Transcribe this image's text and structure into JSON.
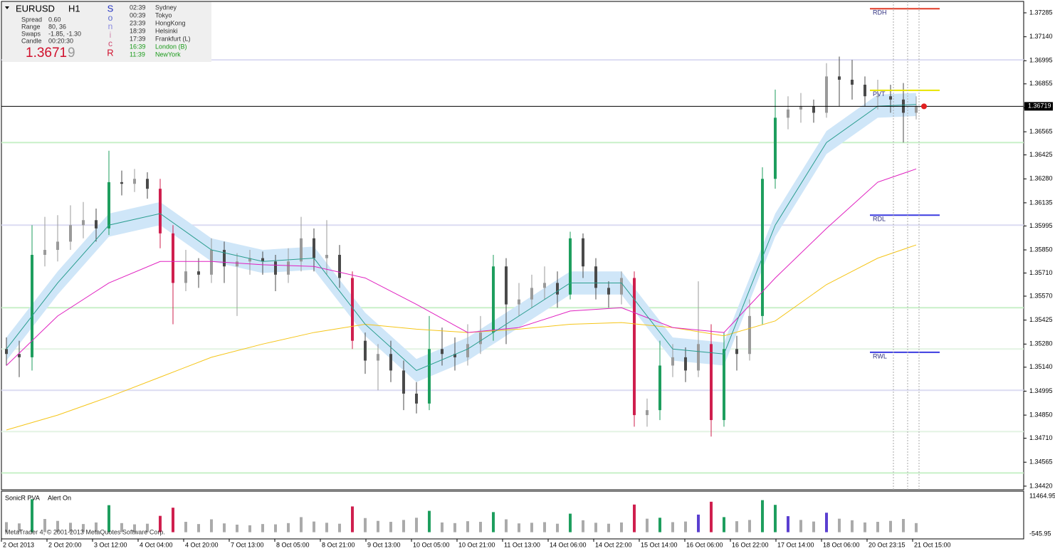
{
  "header": {
    "symbol": "EURUSD",
    "timeframe": "H1",
    "rows": [
      [
        "Spread",
        "0.60"
      ],
      [
        "Range",
        "80, 36"
      ],
      [
        "Swaps",
        "-1.85, -1.30"
      ],
      [
        "Candle",
        "00:20:30"
      ]
    ],
    "price_main": "1.3671",
    "price_last": "9",
    "brand": [
      "S",
      "o",
      "n",
      "i",
      "c",
      "R"
    ],
    "sessions": [
      [
        "02:39",
        "Sydney"
      ],
      [
        "00:39",
        "Tokyo"
      ],
      [
        "23:39",
        "HongKong"
      ],
      [
        "18:39",
        "Helsinki"
      ],
      [
        "17:39",
        "Frankfurt  (L)"
      ],
      [
        "16:39",
        "London  (B)"
      ],
      [
        "11:39",
        "NewYork"
      ]
    ]
  },
  "indicator": {
    "name": "SonicR PVA",
    "alert": "Alert On"
  },
  "footer": "MetaTrader 4, © 2001-2013 MetaQuotes Software Corp.",
  "chart_data": {
    "type": "candlestick",
    "ylim": [
      1.34398,
      1.37354
    ],
    "yticks": [
      1.37285,
      {
        "value": 1.3714,
        "label": "1.37140"
      },
      1.36995,
      1.36855,
      {
        "value": 1.3671,
        "label": "1.36710"
      },
      1.36565,
      1.36425,
      {
        "value": 1.3628,
        "label": "1.36280"
      },
      1.36135,
      1.35995,
      {
        "value": 1.3585,
        "label": "1.35850"
      },
      {
        "value": 1.3571,
        "label": "1.35710"
      },
      {
        "value": 1.3557,
        "label": "1.35570"
      },
      1.35425,
      {
        "value": 1.3528,
        "label": "1.35280"
      },
      {
        "value": 1.3514,
        "label": "1.35140"
      },
      1.34995,
      {
        "value": 1.3485,
        "label": "1.34850"
      },
      {
        "value": 1.3471,
        "label": "1.34710"
      },
      1.34565,
      {
        "value": 1.3442,
        "label": "1.34420"
      }
    ],
    "current_price": 1.36719,
    "x_labels": [
      "2 Oct 2013",
      "2 Oct 20:00",
      "3 Oct 12:00",
      "4 Oct 04:00",
      "4 Oct 20:00",
      "7 Oct 13:00",
      "8 Oct 05:00",
      "8 Oct 21:00",
      "9 Oct 13:00",
      "10 Oct 05:00",
      "10 Oct 21:00",
      "11 Oct 13:00",
      "14 Oct 06:00",
      "14 Oct 22:00",
      "15 Oct 14:00",
      "16 Oct 06:00",
      "16 Oct 22:00",
      "17 Oct 14:00",
      "18 Oct 06:00",
      "20 Oct 23:15",
      "21 Oct 15:00"
    ],
    "candles": {
      "open": [
        1.3525,
        1.3522,
        1.352,
        1.3582,
        1.3585,
        1.359,
        1.36,
        1.3603,
        1.3598,
        1.3626,
        1.3625,
        1.3628,
        1.3622,
        1.3595,
        1.3565,
        1.3572,
        1.357,
        1.3585,
        1.3575,
        1.3578,
        1.358,
        1.3578,
        1.357,
        1.3578,
        1.3592,
        1.358,
        1.3582,
        1.3568,
        1.353,
        1.3518,
        1.3522,
        1.3512,
        1.3498,
        1.3492,
        1.3525,
        1.3522,
        1.352,
        1.3528,
        1.3535,
        1.3575,
        1.3552,
        1.3555,
        1.3562,
        1.3565,
        1.3558,
        1.3592,
        1.3575,
        1.3562,
        1.3558,
        1.3568,
        1.3485,
        1.3488,
        1.3515,
        1.352,
        1.3512,
        1.3528,
        1.3482,
        1.3525,
        1.3522,
        1.3545,
        1.3628,
        1.3665,
        1.367,
        1.3672,
        1.3668,
        1.369,
        1.3688,
        1.3685,
        1.3678,
        1.3678,
        1.3676,
        1.3668
      ],
      "high": [
        1.3532,
        1.353,
        1.36,
        1.3605,
        1.3606,
        1.3612,
        1.3614,
        1.361,
        1.3645,
        1.3633,
        1.3634,
        1.3632,
        1.3628,
        1.36,
        1.3585,
        1.358,
        1.3592,
        1.359,
        1.3583,
        1.3585,
        1.3584,
        1.3582,
        1.3586,
        1.3605,
        1.3598,
        1.3603,
        1.3588,
        1.3572,
        1.3535,
        1.3528,
        1.353,
        1.3518,
        1.3505,
        1.3545,
        1.3538,
        1.3532,
        1.354,
        1.3545,
        1.3582,
        1.358,
        1.3565,
        1.357,
        1.3575,
        1.3572,
        1.3596,
        1.3595,
        1.358,
        1.3566,
        1.3572,
        1.3572,
        1.3495,
        1.353,
        1.3528,
        1.3526,
        1.3566,
        1.354,
        1.3535,
        1.3533,
        1.3555,
        1.3635,
        1.3682,
        1.3678,
        1.368,
        1.3676,
        1.3698,
        1.3702,
        1.37,
        1.369,
        1.3688,
        1.3685,
        1.3686,
        1.3678
      ],
      "low": [
        1.3515,
        1.3508,
        1.3512,
        1.3575,
        1.3578,
        1.3585,
        1.3592,
        1.359,
        1.3594,
        1.3618,
        1.362,
        1.3616,
        1.3586,
        1.354,
        1.356,
        1.3562,
        1.3565,
        1.3565,
        1.3545,
        1.357,
        1.357,
        1.356,
        1.3565,
        1.3572,
        1.3572,
        1.357,
        1.3562,
        1.3525,
        1.351,
        1.35,
        1.3505,
        1.3488,
        1.3486,
        1.3488,
        1.3515,
        1.3512,
        1.3515,
        1.3522,
        1.353,
        1.3528,
        1.3545,
        1.355,
        1.3555,
        1.355,
        1.3555,
        1.3568,
        1.3555,
        1.355,
        1.3552,
        1.3478,
        1.3478,
        1.3482,
        1.3508,
        1.3505,
        1.3508,
        1.3472,
        1.3478,
        1.3512,
        1.3518,
        1.354,
        1.3622,
        1.3658,
        1.3662,
        1.3662,
        1.3665,
        1.3672,
        1.3676,
        1.3672,
        1.367,
        1.3668,
        1.365,
        1.3664
      ],
      "close": [
        1.3522,
        1.352,
        1.3582,
        1.3585,
        1.359,
        1.36,
        1.3603,
        1.3598,
        1.3626,
        1.3625,
        1.3628,
        1.3622,
        1.3595,
        1.3565,
        1.3572,
        1.357,
        1.3585,
        1.3575,
        1.3578,
        1.358,
        1.3578,
        1.357,
        1.3578,
        1.3592,
        1.358,
        1.3582,
        1.3568,
        1.353,
        1.3518,
        1.3522,
        1.3512,
        1.3498,
        1.3492,
        1.3525,
        1.3522,
        1.352,
        1.3528,
        1.3535,
        1.3575,
        1.3552,
        1.3555,
        1.3562,
        1.3565,
        1.3558,
        1.3592,
        1.3575,
        1.3562,
        1.3558,
        1.3568,
        1.3485,
        1.3488,
        1.3515,
        1.352,
        1.3512,
        1.3528,
        1.3482,
        1.3525,
        1.3522,
        1.3545,
        1.3628,
        1.3665,
        1.367,
        1.3672,
        1.3668,
        1.369,
        1.3688,
        1.3685,
        1.3678,
        1.3678,
        1.3676,
        1.3668,
        1.36719
      ]
    },
    "ma_x": [
      0,
      4,
      8,
      12,
      16,
      20,
      24,
      28,
      32,
      36,
      40,
      44,
      48,
      52,
      56,
      60,
      64,
      68,
      71
    ],
    "ma": [
      {
        "color": "#f5c518",
        "values": [
          1.3476,
          1.3485,
          1.3496,
          1.3508,
          1.352,
          1.3528,
          1.3535,
          1.354,
          1.3537,
          1.3535,
          1.3537,
          1.354,
          1.3541,
          1.3538,
          1.3533,
          1.3542,
          1.3564,
          1.358,
          1.3588
        ]
      },
      {
        "color": "#e020c0",
        "values": [
          1.3515,
          1.3545,
          1.3565,
          1.3578,
          1.3578,
          1.3576,
          1.3575,
          1.3568,
          1.3552,
          1.3535,
          1.3538,
          1.3548,
          1.355,
          1.3538,
          1.3535,
          1.3568,
          1.3598,
          1.3626,
          1.3634
        ]
      },
      {
        "color": "#2a9d8f",
        "band_color": "#cfe6f8",
        "band": 0.0007,
        "values": [
          1.3525,
          1.3565,
          1.36,
          1.3607,
          1.3585,
          1.3578,
          1.358,
          1.354,
          1.3512,
          1.3525,
          1.3545,
          1.3565,
          1.3565,
          1.3525,
          1.3522,
          1.36,
          1.365,
          1.3672,
          1.3673
        ]
      }
    ],
    "levels": [
      {
        "value": 1.37,
        "color": "#dcdcf2"
      },
      {
        "value": 1.36,
        "color": "#dcdcf2"
      },
      {
        "value": 1.35,
        "color": "#dcdcf2"
      },
      {
        "value": 1.365,
        "color": "#c8f0c8"
      },
      {
        "value": 1.355,
        "color": "#c8f0c8"
      },
      {
        "value": 1.3525,
        "color": "#e4f4e4"
      },
      {
        "value": 1.3475,
        "color": "#e4f4e4"
      },
      {
        "value": 1.345,
        "color": "#c8f0c8"
      }
    ],
    "pivots": [
      {
        "name": "RDH",
        "value": 1.3731,
        "color": "#e03c28"
      },
      {
        "name": "PVT",
        "value": 1.36816,
        "color": "#e8e400"
      },
      {
        "name": "RDL",
        "value": 1.3606,
        "color": "#3c3ce0"
      },
      {
        "name": "RWL",
        "value": 1.3523,
        "color": "#3c3ce0"
      }
    ],
    "vlim": [
      -545.95,
      11464.95
    ],
    "vticks": [
      {
        "value": 11464.95,
        "label": "11464.95"
      },
      {
        "value": -545.95,
        "label": "-545.95"
      }
    ],
    "volume": [
      3200,
      2800,
      10500,
      4200,
      3600,
      3000,
      2600,
      3100,
      8600,
      2900,
      2500,
      2700,
      5200,
      7800,
      3300,
      2600,
      4100,
      2800,
      2400,
      2200,
      2600,
      2500,
      2900,
      4800,
      3400,
      3000,
      2700,
      8200,
      4500,
      3600,
      3300,
      3900,
      4600,
      6800,
      3100,
      2900,
      3500,
      3300,
      6400,
      4100,
      2800,
      3000,
      3200,
      2700,
      5900,
      3800,
      3000,
      2700,
      3100,
      8800,
      4300,
      4600,
      3200,
      3400,
      5600,
      9700,
      4800,
      3500,
      3900,
      10200,
      8700,
      5100,
      3900,
      3400,
      6200,
      4300,
      3800,
      3100,
      3300,
      3600,
      4200,
      2900
    ]
  }
}
